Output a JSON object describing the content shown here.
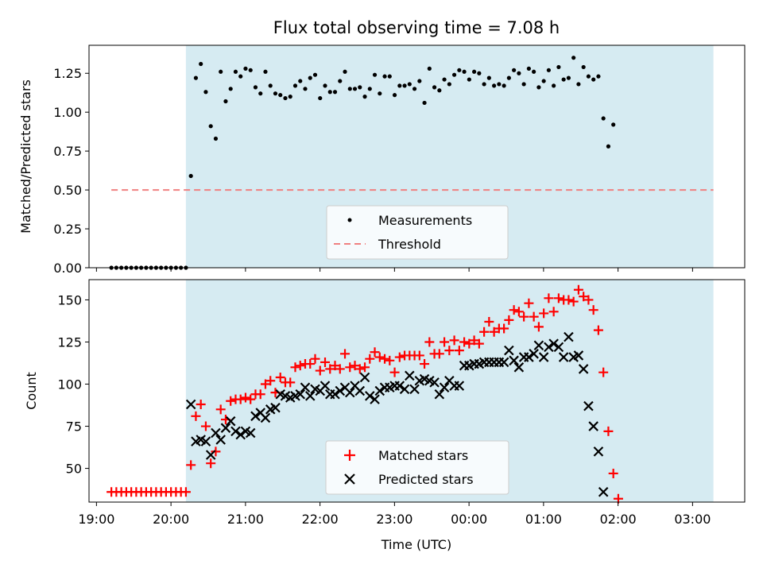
{
  "title": "Flux total observing time = 7.08 h",
  "colors": {
    "shade": "#add8e6",
    "matched": "#ff0000",
    "predicted": "#000000",
    "threshold": "#f08080",
    "measurement": "#000000"
  },
  "chart_data": [
    {
      "type": "scatter",
      "ylabel": "Matched/Predicted stars",
      "ylim": [
        0,
        1.43
      ],
      "yticks": [
        0,
        0.25,
        0.5,
        0.75,
        1.0,
        1.25
      ],
      "ytick_labels": [
        "0.00",
        "0.25",
        "0.50",
        "0.75",
        "1.00",
        "1.25"
      ],
      "x_range_hours": [
        18.9,
        27.7
      ],
      "shaded_span_hours": [
        20.2,
        27.28
      ],
      "threshold": {
        "value": 0.5,
        "x_start_hours": 19.2,
        "x_end_hours": 27.28
      },
      "legend": {
        "position": "lower-center",
        "entries": [
          "Measurements",
          "Threshold"
        ]
      },
      "series": [
        {
          "name": "Measurements",
          "x_start_hours": 19.2,
          "x_step_hours": 0.0667,
          "values": [
            0,
            0,
            0,
            0,
            0,
            0,
            0,
            0,
            0,
            0,
            0,
            0,
            0,
            0,
            0,
            0,
            0.59,
            1.22,
            1.31,
            1.13,
            0.91,
            0.83,
            1.26,
            1.07,
            1.15,
            1.26,
            1.23,
            1.28,
            1.27,
            1.16,
            1.12,
            1.26,
            1.17,
            1.12,
            1.11,
            1.09,
            1.1,
            1.17,
            1.2,
            1.15,
            1.22,
            1.24,
            1.09,
            1.17,
            1.13,
            1.13,
            1.2,
            1.26,
            1.15,
            1.15,
            1.16,
            1.1,
            1.15,
            1.24,
            1.12,
            1.23,
            1.23,
            1.11,
            1.17,
            1.17,
            1.18,
            1.15,
            1.2,
            1.06,
            1.28,
            1.16,
            1.14,
            1.21,
            1.18,
            1.24,
            1.27,
            1.26,
            1.21,
            1.26,
            1.25,
            1.18,
            1.22,
            1.17,
            1.18,
            1.17,
            1.22,
            1.27,
            1.25,
            1.18,
            1.28,
            1.26,
            1.16,
            1.2,
            1.27,
            1.17,
            1.29,
            1.21,
            1.22,
            1.35,
            1.18,
            1.29,
            1.23,
            1.21,
            1.23,
            0.96,
            0.78,
            0.92
          ]
        }
      ]
    },
    {
      "type": "scatter",
      "xlabel": "Time (UTC)",
      "ylabel": "Count",
      "ylim": [
        30,
        162
      ],
      "yticks": [
        50,
        75,
        100,
        125,
        150
      ],
      "ytick_labels": [
        "50",
        "75",
        "100",
        "125",
        "150"
      ],
      "x_range_hours": [
        18.9,
        27.7
      ],
      "xticks_hours": [
        19,
        20,
        21,
        22,
        23,
        24,
        25,
        26,
        27
      ],
      "xtick_labels": [
        "19:00",
        "20:00",
        "21:00",
        "22:00",
        "23:00",
        "00:00",
        "01:00",
        "02:00",
        "03:00"
      ],
      "shaded_span_hours": [
        20.2,
        27.28
      ],
      "legend": {
        "position": "lower-center",
        "entries": [
          "Matched stars",
          "Predicted stars"
        ]
      },
      "series": [
        {
          "name": "Matched stars",
          "x_start_hours": 19.2,
          "x_step_hours": 0.0667,
          "values": [
            36,
            36,
            36,
            36,
            36,
            36,
            36,
            36,
            36,
            36,
            36,
            36,
            36,
            36,
            36,
            36,
            52,
            81,
            88,
            75,
            53,
            60,
            85,
            79,
            90,
            91,
            91,
            92,
            91,
            94,
            94,
            100,
            102,
            95,
            104,
            101,
            101,
            110,
            111,
            112,
            112,
            115,
            108,
            113,
            109,
            111,
            109,
            118,
            110,
            111,
            109,
            110,
            115,
            119,
            116,
            115,
            114,
            107,
            116,
            117,
            117,
            117,
            117,
            112,
            125,
            118,
            118,
            125,
            120,
            126,
            120,
            125,
            124,
            126,
            124,
            131,
            137,
            131,
            133,
            133,
            138,
            144,
            143,
            140,
            148,
            140,
            134,
            142,
            151,
            143,
            151,
            150,
            150,
            149,
            156,
            152,
            150,
            144,
            132,
            107,
            72,
            47,
            32
          ]
        },
        {
          "name": "Predicted stars",
          "x_start_hours": 19.2,
          "x_step_hours": 0.0667,
          "x_offset_index": 16,
          "values": [
            88,
            66,
            67,
            66,
            58,
            71,
            67,
            74,
            78,
            72,
            70,
            72,
            71,
            81,
            83,
            80,
            85,
            86,
            94,
            93,
            92,
            93,
            94,
            98,
            93,
            97,
            96,
            99,
            94,
            94,
            96,
            98,
            95,
            99,
            96,
            104,
            93,
            91,
            96,
            98,
            98,
            99,
            99,
            97,
            105,
            97,
            102,
            103,
            102,
            101,
            94,
            98,
            102,
            99,
            99,
            111,
            111,
            112,
            112,
            113,
            113,
            113,
            113,
            113,
            120,
            114,
            110,
            116,
            116,
            118,
            123,
            116,
            122,
            124,
            122,
            116,
            128,
            116,
            117,
            109,
            87,
            75,
            60,
            36
          ]
        }
      ]
    }
  ]
}
